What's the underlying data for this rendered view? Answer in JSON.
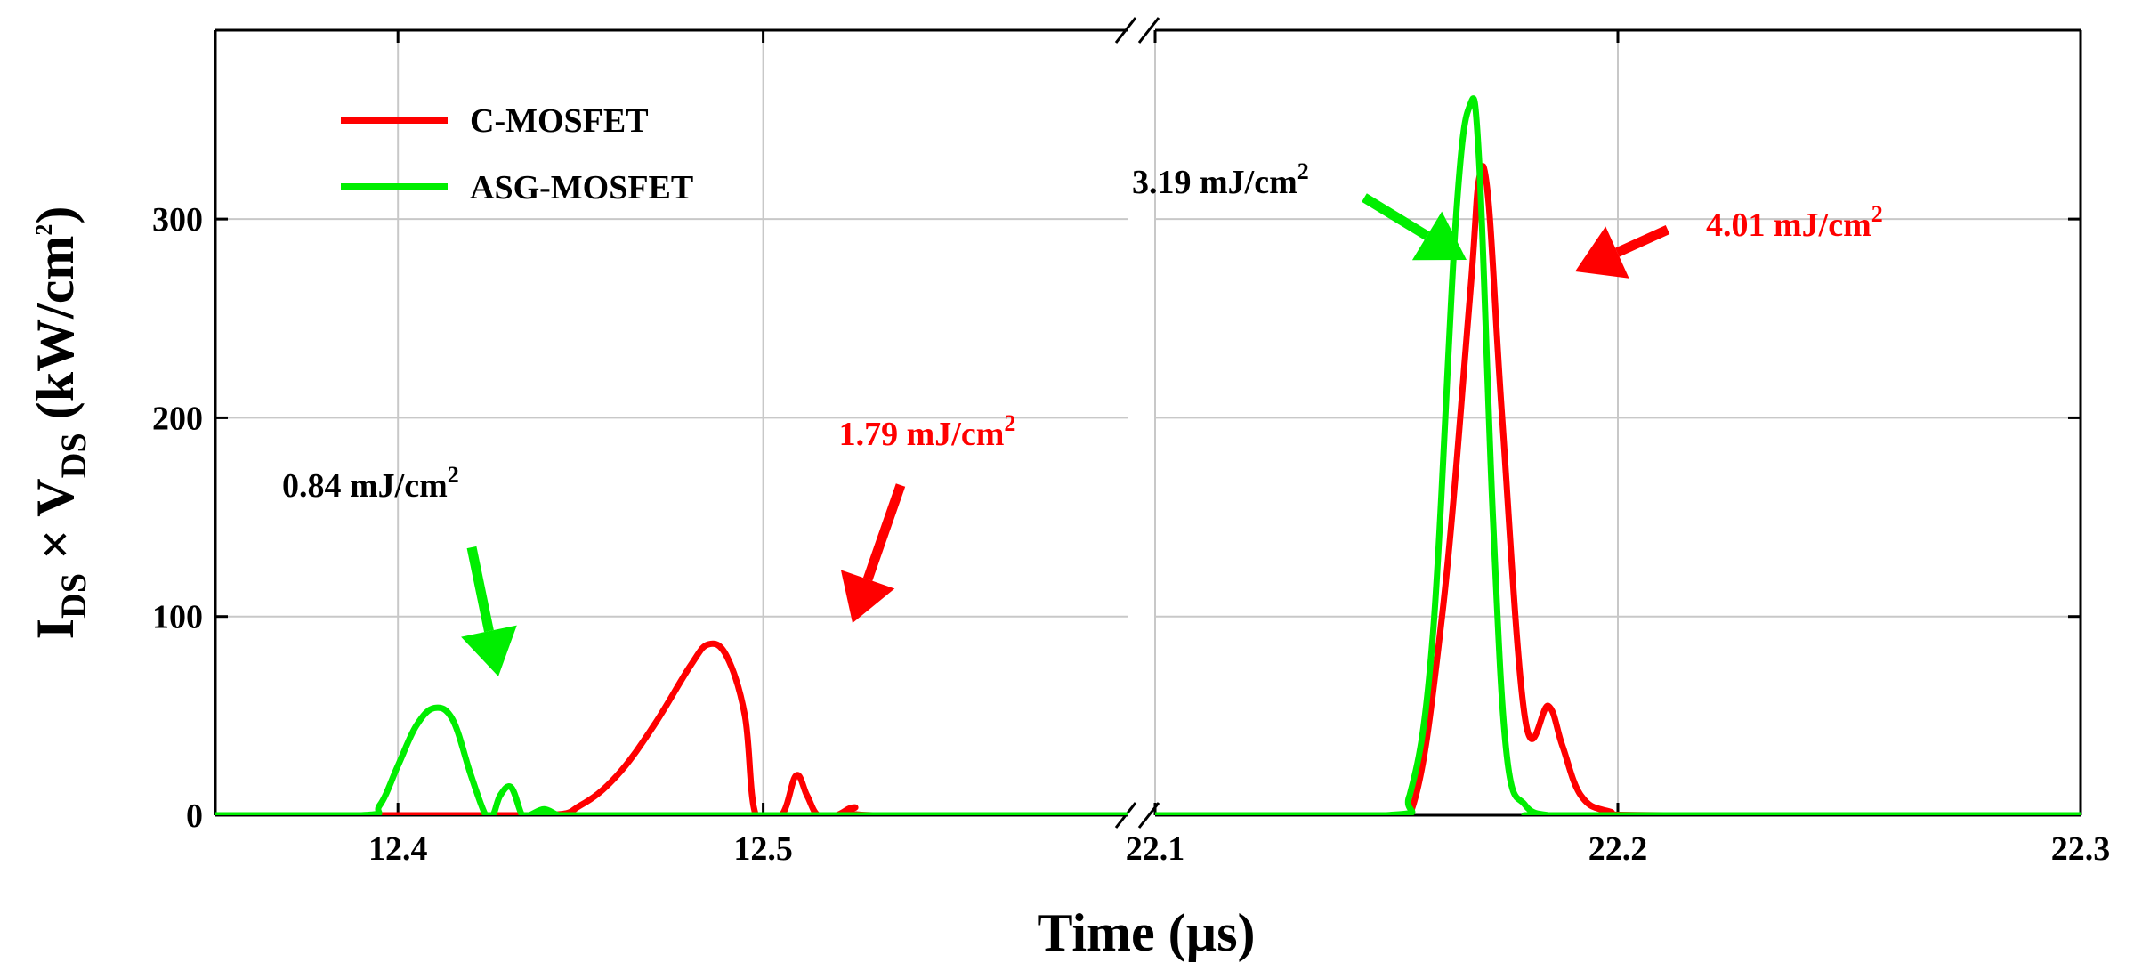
{
  "chart_data": {
    "type": "line",
    "title": "",
    "xlabel": "Time (µs)",
    "ylabel": {
      "main": "I",
      "sub1": "DS",
      "times": " × V",
      "sub2": "DS",
      "units": " (kW/cm",
      "sup": "2",
      "close": ")"
    },
    "broken_x_axis": true,
    "segments": [
      {
        "xlim": [
          12.35,
          12.6
        ],
        "ticks": [
          12.4,
          12.5
        ],
        "tick_labels": [
          "12.4",
          "12.5"
        ]
      },
      {
        "xlim": [
          22.1,
          22.3
        ],
        "ticks": [
          22.1,
          22.2,
          22.3
        ],
        "tick_labels": [
          "22.1",
          "22.2",
          "22.3"
        ]
      }
    ],
    "ylim": [
      0,
      395
    ],
    "yticks": [
      0,
      100,
      200,
      300
    ],
    "ytick_labels": [
      "0",
      "100",
      "200",
      "300"
    ],
    "grid": true,
    "legend_position": "top-left",
    "series": [
      {
        "name": "C-MOSFET",
        "color": "#ff0000",
        "x": [
          12.35,
          12.4,
          12.44,
          12.45,
          12.46,
          12.47,
          12.48,
          12.485,
          12.49,
          12.495,
          12.498,
          12.505,
          12.509,
          12.512,
          12.515,
          12.52,
          12.525,
          12.53,
          12.6,
          22.145,
          22.155,
          22.162,
          22.168,
          22.17,
          22.172,
          22.175,
          22.18,
          22.185,
          22.188,
          22.192,
          22.198,
          22.21,
          22.3
        ],
        "y": [
          0,
          0,
          0,
          5,
          20,
          45,
          75,
          86,
          80,
          50,
          0,
          0,
          20,
          10,
          0,
          0,
          4,
          0,
          0,
          0,
          0,
          100,
          260,
          320,
          310,
          200,
          48,
          55,
          35,
          10,
          2,
          0,
          0
        ]
      },
      {
        "name": "ASG-MOSFET",
        "color": "#00ee00",
        "x": [
          12.35,
          12.39,
          12.395,
          12.4,
          12.405,
          12.41,
          12.415,
          12.42,
          12.424,
          12.426,
          12.428,
          12.431,
          12.434,
          12.436,
          12.44,
          12.444,
          12.448,
          12.6,
          22.1,
          22.15,
          22.155,
          22.16,
          22.165,
          22.168,
          22.17,
          22.173,
          22.176,
          22.18,
          22.185,
          22.19,
          22.3
        ],
        "y": [
          0,
          0,
          5,
          25,
          45,
          54,
          48,
          20,
          0,
          0,
          10,
          14,
          0,
          0,
          3,
          0,
          0,
          0,
          0,
          0,
          10,
          90,
          300,
          357,
          330,
          150,
          30,
          5,
          0,
          0,
          0
        ]
      }
    ],
    "annotations": [
      {
        "text": "0.84 mJ/cm",
        "sup": "2",
        "color": "#000000",
        "points_to": "ASG-MOSFET",
        "at": [
          12.41,
          54
        ]
      },
      {
        "text": "1.79 mJ/cm",
        "sup": "2",
        "color": "#ff0000",
        "points_to": "C-MOSFET",
        "at": [
          12.485,
          86
        ]
      },
      {
        "text": "3.19 mJ/cm",
        "sup": "2",
        "color": "#000000",
        "points_to": "ASG-MOSFET",
        "at": [
          22.165,
          290
        ]
      },
      {
        "text": "4.01 mJ/cm",
        "sup": "2",
        "color": "#ff0000",
        "points_to": "C-MOSFET",
        "at": [
          22.175,
          280
        ]
      }
    ]
  }
}
